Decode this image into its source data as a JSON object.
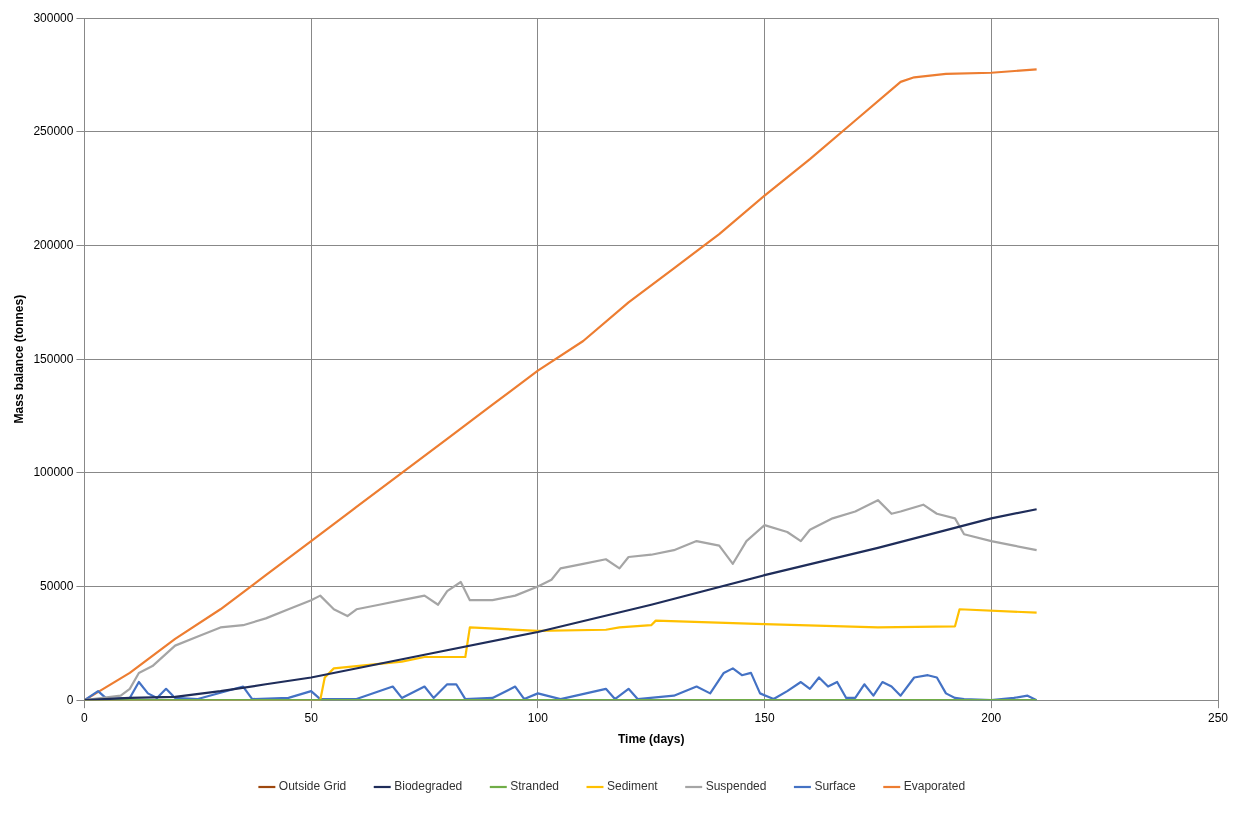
{
  "chart_data": {
    "type": "line",
    "xlabel": "Time (days)",
    "ylabel": "Mass balance (tonnes)",
    "xlim": [
      0,
      250
    ],
    "xticks": [
      0,
      50,
      100,
      150,
      200,
      250
    ],
    "ylim": [
      0,
      300000
    ],
    "yticks": [
      0,
      50000,
      100000,
      150000,
      200000,
      250000,
      300000
    ],
    "grid": true,
    "legend": "bottom",
    "marker": "none",
    "line_style": "solid",
    "series": [
      {
        "name": "Outside Grid",
        "color": "#9e480e"
      },
      {
        "name": "Biodegraded",
        "color": "#1f2d5a",
        "x": [
          0,
          10,
          20,
          30,
          40,
          50,
          75,
          100,
          125,
          150,
          175,
          200,
          210
        ],
        "values": [
          0,
          1000,
          1500,
          4000,
          7000,
          10000,
          20000,
          30000,
          42000,
          55000,
          67000,
          80000,
          84000
        ]
      },
      {
        "name": "Stranded",
        "color": "#70ad47",
        "x": [
          0,
          210
        ],
        "values": [
          0,
          0
        ]
      },
      {
        "name": "Sediment",
        "color": "#ffc000",
        "x": [
          0,
          52,
          53,
          55,
          60,
          70,
          75,
          84,
          85,
          100,
          115,
          118,
          125,
          126,
          150,
          175,
          192,
          193,
          210
        ],
        "values": [
          0,
          0,
          10000,
          14000,
          15000,
          17000,
          19000,
          19000,
          32000,
          30500,
          31000,
          32000,
          33000,
          35000,
          33500,
          32000,
          32500,
          40000,
          38500
        ]
      },
      {
        "name": "Suspended",
        "color": "#a5a5a5",
        "x": [
          0,
          8,
          10,
          12,
          15,
          20,
          25,
          30,
          35,
          40,
          45,
          50,
          52,
          55,
          58,
          60,
          65,
          70,
          75,
          78,
          80,
          83,
          85,
          90,
          95,
          100,
          103,
          105,
          110,
          115,
          118,
          120,
          125,
          130,
          135,
          140,
          143,
          146,
          150,
          155,
          158,
          160,
          165,
          170,
          175,
          178,
          180,
          185,
          188,
          192,
          194,
          200,
          205,
          210
        ],
        "values": [
          0,
          2000,
          5000,
          12000,
          15000,
          24000,
          28000,
          32000,
          33000,
          36000,
          40000,
          44000,
          46000,
          40000,
          37000,
          40000,
          42000,
          44000,
          46000,
          42000,
          48000,
          52000,
          44000,
          44000,
          46000,
          50000,
          53000,
          58000,
          60000,
          62000,
          58000,
          63000,
          64000,
          66000,
          70000,
          68000,
          60000,
          70000,
          77000,
          74000,
          70000,
          75000,
          80000,
          83000,
          88000,
          82000,
          83000,
          86000,
          82000,
          80000,
          73000,
          70000,
          68000,
          66000
        ]
      },
      {
        "name": "Surface",
        "color": "#4472c4",
        "x": [
          0,
          3,
          5,
          10,
          12,
          14,
          16,
          18,
          20,
          25,
          35,
          37,
          45,
          50,
          52,
          60,
          68,
          70,
          75,
          77,
          80,
          82,
          84,
          90,
          95,
          97,
          100,
          105,
          115,
          117,
          120,
          122,
          130,
          135,
          138,
          141,
          143,
          145,
          147,
          149,
          152,
          155,
          158,
          160,
          162,
          164,
          166,
          168,
          170,
          172,
          174,
          176,
          178,
          180,
          183,
          186,
          188,
          190,
          192,
          194,
          200,
          205,
          208,
          210
        ],
        "values": [
          0,
          4000,
          500,
          1000,
          8000,
          3000,
          1000,
          5000,
          1000,
          500,
          6000,
          500,
          1000,
          4000,
          500,
          500,
          6000,
          1000,
          6000,
          1000,
          7000,
          7000,
          500,
          1000,
          6000,
          500,
          3000,
          500,
          5000,
          500,
          5000,
          500,
          2000,
          6000,
          3000,
          12000,
          14000,
          11000,
          12000,
          3000,
          500,
          4000,
          8000,
          5000,
          10000,
          6000,
          8000,
          1000,
          1000,
          7000,
          2000,
          8000,
          6000,
          2000,
          10000,
          11000,
          10000,
          3000,
          1000,
          500,
          0,
          1000,
          2000,
          0
        ]
      },
      {
        "name": "Evaporated",
        "color": "#ed7d31",
        "x": [
          0,
          10,
          20,
          30,
          40,
          50,
          60,
          70,
          80,
          90,
          100,
          110,
          120,
          130,
          140,
          150,
          160,
          170,
          180,
          183,
          190,
          200,
          210
        ],
        "values": [
          0,
          12000,
          27000,
          40000,
          55000,
          70000,
          85000,
          100000,
          115000,
          130000,
          145000,
          158000,
          175000,
          190000,
          205000,
          222000,
          238000,
          255000,
          272000,
          274000,
          275500,
          276000,
          277500
        ]
      }
    ]
  }
}
